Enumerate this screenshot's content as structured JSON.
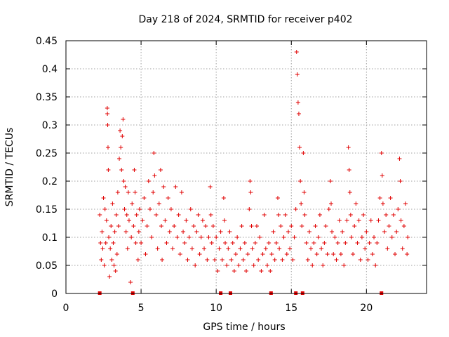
{
  "chart_data": {
    "type": "scatter",
    "title": "Day 218 of 2024, SRMTID for receiver p402",
    "xlabel": "GPS time / hours",
    "ylabel": "SRMTID / TECUs",
    "xlim": [
      0,
      24
    ],
    "ylim": [
      0,
      0.45
    ],
    "xticks": [
      0,
      5,
      10,
      15,
      20
    ],
    "xtick_labels": [
      "0",
      "5",
      "10",
      "15",
      "20"
    ],
    "yticks": [
      0,
      0.05,
      0.1,
      0.15,
      0.2,
      0.25,
      0.3,
      0.35,
      0.4,
      0.45
    ],
    "ytick_labels": [
      "0",
      "0.05",
      "0.1",
      "0.15",
      "0.2",
      "0.25",
      "0.3",
      "0.35",
      "0.4",
      "0.45"
    ],
    "grid": true,
    "color": "#e00000",
    "marker": "plus",
    "series": [
      {
        "name": "SRMTID",
        "points": [
          [
            2.25,
            0.14
          ],
          [
            2.3,
            0.09
          ],
          [
            2.35,
            0.06
          ],
          [
            2.4,
            0.11
          ],
          [
            2.45,
            0.08
          ],
          [
            2.5,
            0.17
          ],
          [
            2.55,
            0.05
          ],
          [
            2.6,
            0.15
          ],
          [
            2.65,
            0.09
          ],
          [
            2.7,
            0.13
          ],
          [
            2.75,
            0.33
          ],
          [
            2.76,
            0.32
          ],
          [
            2.78,
            0.3
          ],
          [
            2.8,
            0.26
          ],
          [
            2.82,
            0.22
          ],
          [
            2.85,
            0.1
          ],
          [
            2.9,
            0.03
          ],
          [
            2.95,
            0.08
          ],
          [
            3.0,
            0.12
          ],
          [
            3.05,
            0.06
          ],
          [
            3.1,
            0.16
          ],
          [
            3.15,
            0.09
          ],
          [
            3.2,
            0.05
          ],
          [
            3.25,
            0.11
          ],
          [
            3.3,
            0.04
          ],
          [
            3.35,
            0.14
          ],
          [
            3.4,
            0.07
          ],
          [
            3.45,
            0.18
          ],
          [
            3.5,
            0.12
          ],
          [
            3.55,
            0.24
          ],
          [
            3.6,
            0.29
          ],
          [
            3.65,
            0.26
          ],
          [
            3.7,
            0.22
          ],
          [
            3.75,
            0.28
          ],
          [
            3.8,
            0.31
          ],
          [
            3.85,
            0.2
          ],
          [
            3.9,
            0.15
          ],
          [
            3.95,
            0.19
          ],
          [
            4.0,
            0.11
          ],
          [
            4.05,
            0.14
          ],
          [
            4.1,
            0.08
          ],
          [
            4.15,
            0.18
          ],
          [
            4.2,
            0.13
          ],
          [
            4.3,
            0.02
          ],
          [
            4.35,
            0.1
          ],
          [
            4.4,
            0.16
          ],
          [
            4.5,
            0.12
          ],
          [
            4.55,
            0.22
          ],
          [
            4.6,
            0.18
          ],
          [
            4.65,
            0.09
          ],
          [
            4.7,
            0.14
          ],
          [
            4.8,
            0.06
          ],
          [
            4.85,
            0.11
          ],
          [
            4.9,
            0.15
          ],
          [
            5.0,
            0.09
          ],
          [
            5.1,
            0.13
          ],
          [
            5.2,
            0.17
          ],
          [
            5.3,
            0.07
          ],
          [
            5.4,
            0.12
          ],
          [
            5.5,
            0.2
          ],
          [
            5.6,
            0.15
          ],
          [
            5.7,
            0.1
          ],
          [
            5.8,
            0.18
          ],
          [
            5.85,
            0.25
          ],
          [
            5.9,
            0.21
          ],
          [
            6.0,
            0.14
          ],
          [
            6.1,
            0.08
          ],
          [
            6.2,
            0.16
          ],
          [
            6.3,
            0.22
          ],
          [
            6.35,
            0.12
          ],
          [
            6.4,
            0.06
          ],
          [
            6.5,
            0.19
          ],
          [
            6.6,
            0.13
          ],
          [
            6.7,
            0.09
          ],
          [
            6.8,
            0.17
          ],
          [
            6.9,
            0.11
          ],
          [
            7.0,
            0.15
          ],
          [
            7.1,
            0.08
          ],
          [
            7.2,
            0.12
          ],
          [
            7.3,
            0.19
          ],
          [
            7.4,
            0.1
          ],
          [
            7.5,
            0.14
          ],
          [
            7.6,
            0.07
          ],
          [
            7.7,
            0.18
          ],
          [
            7.8,
            0.11
          ],
          [
            7.9,
            0.09
          ],
          [
            8.0,
            0.13
          ],
          [
            8.1,
            0.06
          ],
          [
            8.2,
            0.1
          ],
          [
            8.3,
            0.15
          ],
          [
            8.4,
            0.08
          ],
          [
            8.5,
            0.12
          ],
          [
            8.6,
            0.05
          ],
          [
            8.7,
            0.11
          ],
          [
            8.8,
            0.14
          ],
          [
            8.9,
            0.07
          ],
          [
            9.0,
            0.1
          ],
          [
            9.1,
            0.13
          ],
          [
            9.2,
            0.08
          ],
          [
            9.3,
            0.12
          ],
          [
            9.4,
            0.06
          ],
          [
            9.5,
            0.1
          ],
          [
            9.6,
            0.19
          ],
          [
            9.65,
            0.14
          ],
          [
            9.7,
            0.09
          ],
          [
            9.8,
            0.12
          ],
          [
            9.9,
            0.06
          ],
          [
            10.0,
            0.1
          ],
          [
            10.1,
            0.04
          ],
          [
            10.2,
            0.08
          ],
          [
            10.3,
            0.11
          ],
          [
            10.4,
            0.06
          ],
          [
            10.5,
            0.17
          ],
          [
            10.55,
            0.13
          ],
          [
            10.6,
            0.09
          ],
          [
            10.7,
            0.05
          ],
          [
            10.8,
            0.08
          ],
          [
            10.9,
            0.11
          ],
          [
            11.0,
            0.06
          ],
          [
            11.1,
            0.09
          ],
          [
            11.2,
            0.04
          ],
          [
            11.3,
            0.07
          ],
          [
            11.4,
            0.1
          ],
          [
            11.5,
            0.05
          ],
          [
            11.6,
            0.08
          ],
          [
            11.7,
            0.12
          ],
          [
            11.8,
            0.06
          ],
          [
            11.9,
            0.09
          ],
          [
            12.0,
            0.04
          ],
          [
            12.1,
            0.07
          ],
          [
            12.2,
            0.15
          ],
          [
            12.25,
            0.2
          ],
          [
            12.3,
            0.18
          ],
          [
            12.35,
            0.12
          ],
          [
            12.4,
            0.08
          ],
          [
            12.5,
            0.05
          ],
          [
            12.6,
            0.09
          ],
          [
            12.7,
            0.12
          ],
          [
            12.8,
            0.06
          ],
          [
            12.9,
            0.1
          ],
          [
            13.0,
            0.04
          ],
          [
            13.1,
            0.07
          ],
          [
            13.2,
            0.14
          ],
          [
            13.3,
            0.08
          ],
          [
            13.4,
            0.05
          ],
          [
            13.5,
            0.09
          ],
          [
            13.6,
            0.04
          ],
          [
            13.7,
            0.07
          ],
          [
            13.8,
            0.11
          ],
          [
            13.9,
            0.06
          ],
          [
            14.0,
            0.09
          ],
          [
            14.1,
            0.17
          ],
          [
            14.15,
            0.14
          ],
          [
            14.2,
            0.08
          ],
          [
            14.3,
            0.12
          ],
          [
            14.4,
            0.06
          ],
          [
            14.5,
            0.1
          ],
          [
            14.6,
            0.14
          ],
          [
            14.7,
            0.07
          ],
          [
            14.8,
            0.11
          ],
          [
            14.9,
            0.08
          ],
          [
            15.0,
            0.12
          ],
          [
            15.1,
            0.06
          ],
          [
            15.2,
            0.1
          ],
          [
            15.3,
            0.15
          ],
          [
            15.35,
            0.43
          ],
          [
            15.4,
            0.39
          ],
          [
            15.45,
            0.34
          ],
          [
            15.5,
            0.32
          ],
          [
            15.55,
            0.26
          ],
          [
            15.6,
            0.2
          ],
          [
            15.65,
            0.16
          ],
          [
            15.7,
            0.12
          ],
          [
            15.8,
            0.25
          ],
          [
            15.85,
            0.18
          ],
          [
            15.9,
            0.14
          ],
          [
            16.0,
            0.09
          ],
          [
            16.1,
            0.06
          ],
          [
            16.2,
            0.11
          ],
          [
            16.3,
            0.08
          ],
          [
            16.4,
            0.05
          ],
          [
            16.5,
            0.09
          ],
          [
            16.6,
            0.12
          ],
          [
            16.7,
            0.07
          ],
          [
            16.8,
            0.1
          ],
          [
            16.9,
            0.14
          ],
          [
            17.0,
            0.08
          ],
          [
            17.1,
            0.05
          ],
          [
            17.2,
            0.09
          ],
          [
            17.3,
            0.12
          ],
          [
            17.4,
            0.07
          ],
          [
            17.5,
            0.15
          ],
          [
            17.6,
            0.2
          ],
          [
            17.65,
            0.16
          ],
          [
            17.7,
            0.11
          ],
          [
            17.8,
            0.07
          ],
          [
            17.9,
            0.1
          ],
          [
            18.0,
            0.06
          ],
          [
            18.1,
            0.09
          ],
          [
            18.2,
            0.13
          ],
          [
            18.3,
            0.07
          ],
          [
            18.4,
            0.11
          ],
          [
            18.5,
            0.05
          ],
          [
            18.6,
            0.09
          ],
          [
            18.7,
            0.13
          ],
          [
            18.8,
            0.26
          ],
          [
            18.85,
            0.22
          ],
          [
            18.9,
            0.18
          ],
          [
            18.95,
            0.14
          ],
          [
            19.0,
            0.1
          ],
          [
            19.1,
            0.07
          ],
          [
            19.2,
            0.12
          ],
          [
            19.3,
            0.16
          ],
          [
            19.4,
            0.09
          ],
          [
            19.5,
            0.13
          ],
          [
            19.6,
            0.06
          ],
          [
            19.7,
            0.1
          ],
          [
            19.8,
            0.14
          ],
          [
            19.9,
            0.08
          ],
          [
            20.0,
            0.11
          ],
          [
            20.1,
            0.06
          ],
          [
            20.2,
            0.09
          ],
          [
            20.3,
            0.13
          ],
          [
            20.4,
            0.07
          ],
          [
            20.5,
            0.1
          ],
          [
            20.6,
            0.05
          ],
          [
            20.7,
            0.09
          ],
          [
            20.8,
            0.13
          ],
          [
            20.9,
            0.17
          ],
          [
            21.0,
            0.25
          ],
          [
            21.05,
            0.21
          ],
          [
            21.1,
            0.16
          ],
          [
            21.2,
            0.11
          ],
          [
            21.3,
            0.14
          ],
          [
            21.4,
            0.08
          ],
          [
            21.5,
            0.12
          ],
          [
            21.6,
            0.17
          ],
          [
            21.7,
            0.1
          ],
          [
            21.8,
            0.14
          ],
          [
            21.9,
            0.07
          ],
          [
            22.0,
            0.11
          ],
          [
            22.1,
            0.15
          ],
          [
            22.2,
            0.24
          ],
          [
            22.25,
            0.2
          ],
          [
            22.3,
            0.13
          ],
          [
            22.4,
            0.08
          ],
          [
            22.5,
            0.12
          ],
          [
            22.6,
            0.16
          ],
          [
            22.7,
            0.07
          ],
          [
            22.75,
            0.1
          ]
        ]
      }
    ],
    "rug_x": [
      2.25,
      4.45,
      10.3,
      10.95,
      13.65,
      15.3,
      15.75,
      21.0
    ]
  }
}
